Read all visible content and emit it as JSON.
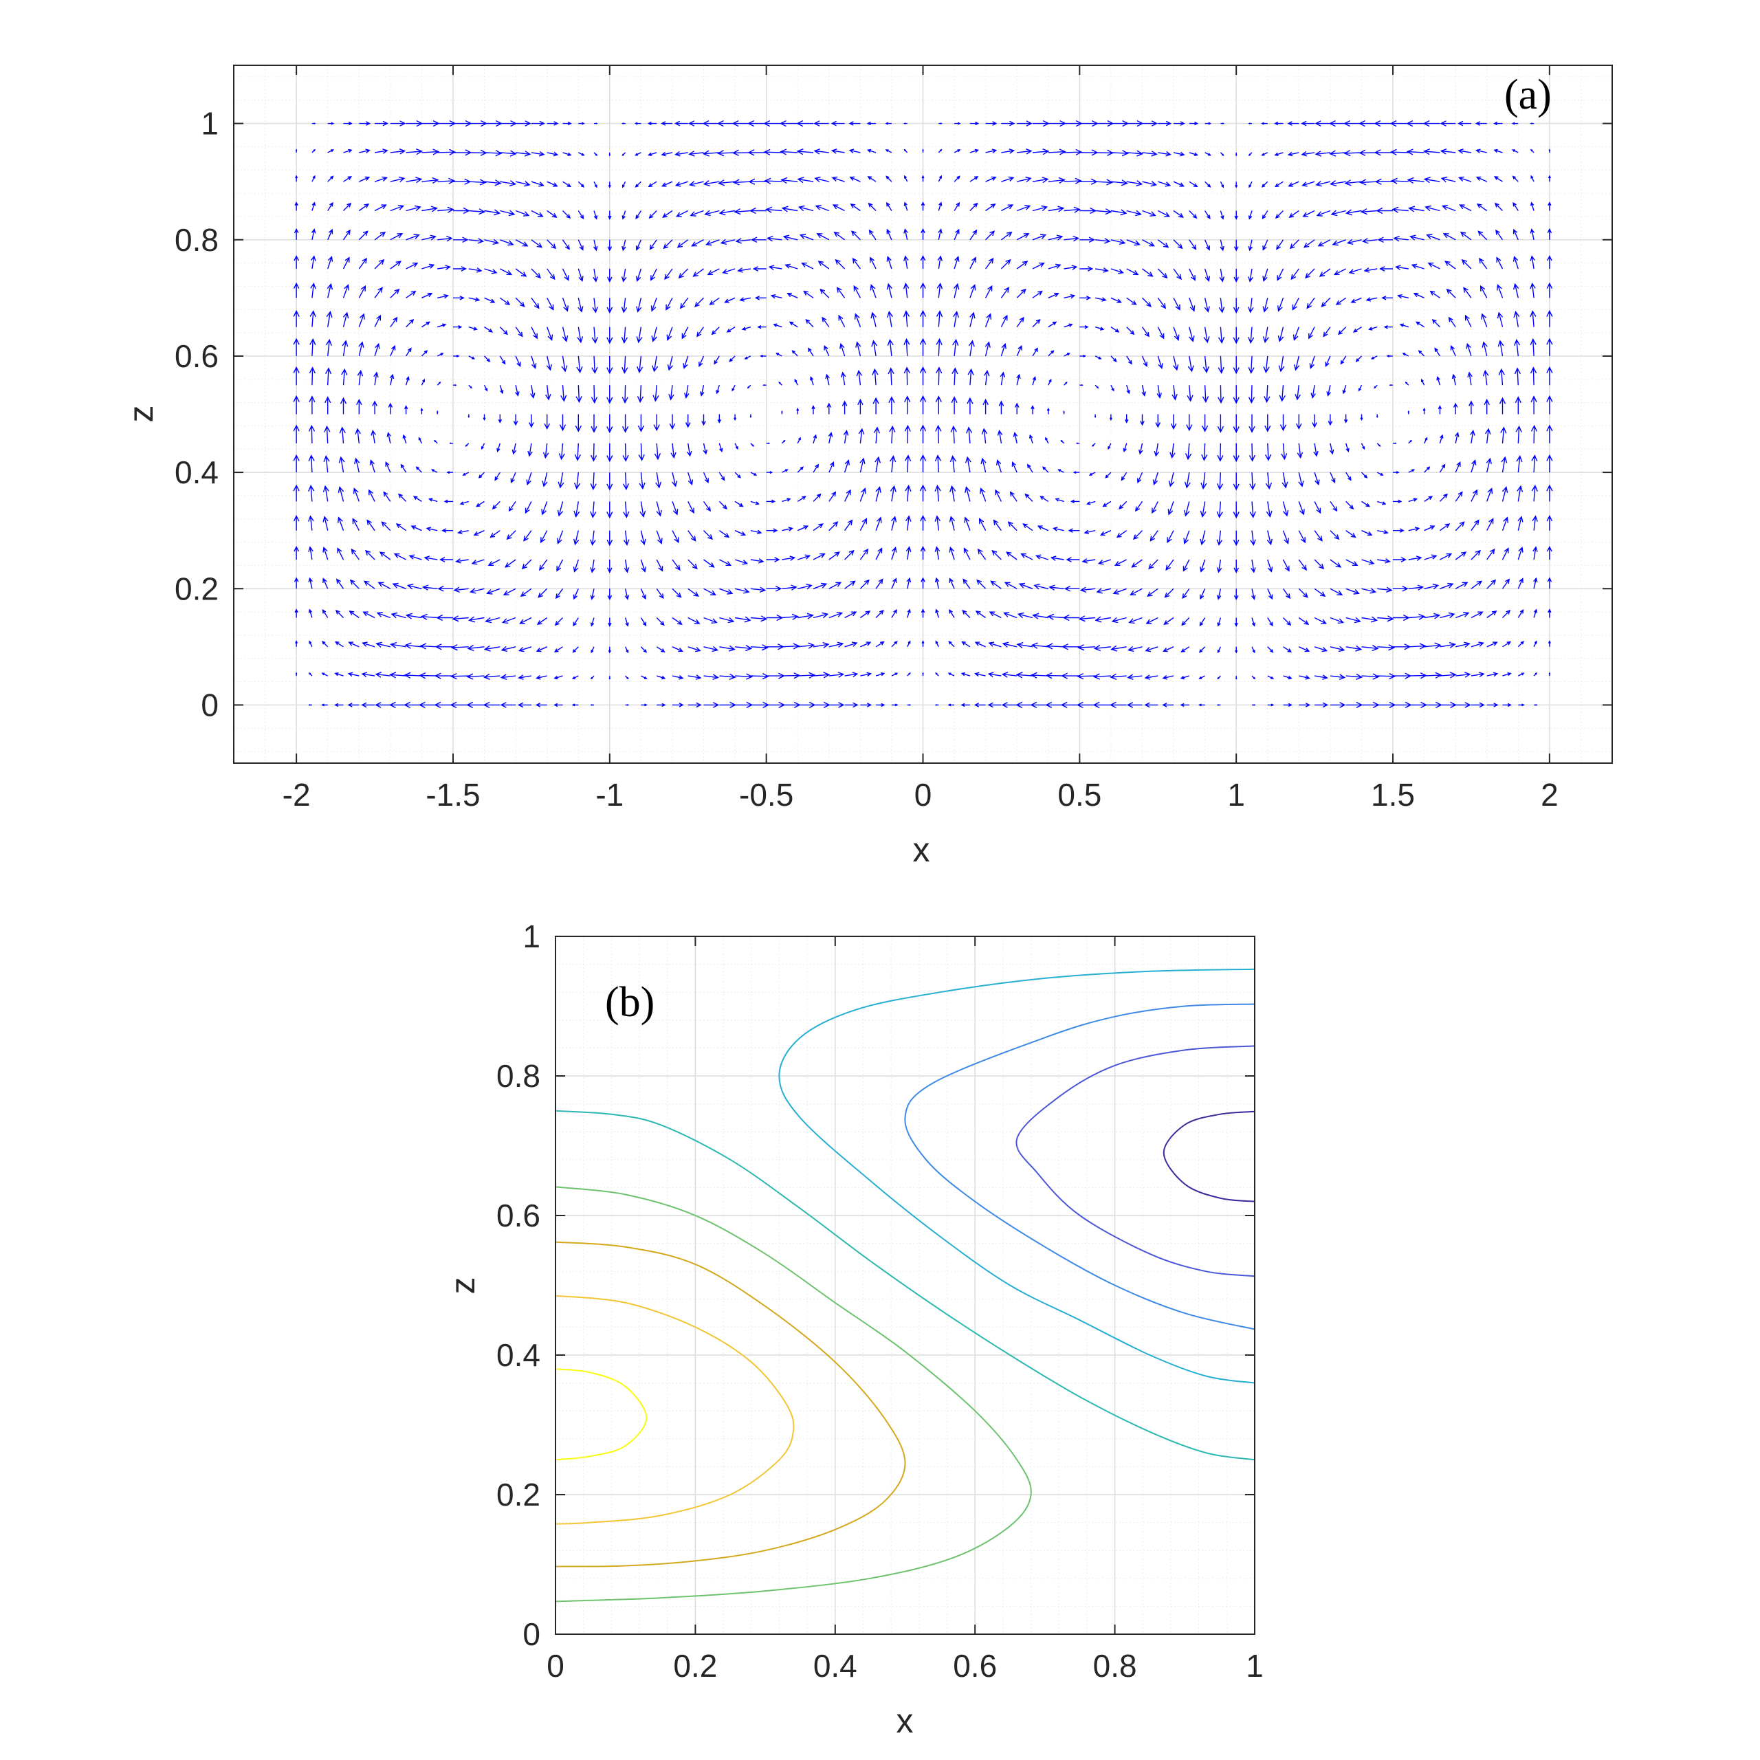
{
  "chart_data": [
    {
      "type": "quiver",
      "panel_label": "(a)",
      "xlabel": "x",
      "ylabel": "z",
      "xlim": [
        -2.2,
        2.2
      ],
      "ylim": [
        -0.1,
        1.1
      ],
      "xticks": [
        "-2",
        "-1.5",
        "-1",
        "-0.5",
        "0",
        "0.5",
        "1",
        "1.5",
        "2"
      ],
      "xtick_values": [
        -2,
        -1.5,
        -1,
        -0.5,
        0,
        0.5,
        1,
        1.5,
        2
      ],
      "yticks": [
        "0",
        "0.2",
        "0.4",
        "0.6",
        "0.8",
        "1"
      ],
      "ytick_values": [
        0,
        0.2,
        0.4,
        0.6,
        0.8,
        1
      ],
      "grid": true,
      "minor_grid": true,
      "arrow_color": "#0000ff",
      "field": {
        "x_range": [
          -2,
          2
        ],
        "z_range": [
          0,
          1
        ],
        "nx": 81,
        "nz": 21,
        "u": "-sin(pi*x)*cos(pi*z)",
        "w": "cos(pi*x)*sin(pi*z)"
      }
    },
    {
      "type": "contour",
      "panel_label": "(b)",
      "xlabel": "x",
      "ylabel": "z",
      "xlim": [
        0,
        1
      ],
      "ylim": [
        0,
        1
      ],
      "xticks": [
        "0",
        "0.2",
        "0.4",
        "0.6",
        "0.8",
        "1"
      ],
      "xtick_values": [
        0,
        0.2,
        0.4,
        0.6,
        0.8,
        1
      ],
      "yticks": [
        "0",
        "0.2",
        "0.4",
        "0.6",
        "0.8",
        "1"
      ],
      "ytick_values": [
        0,
        0.2,
        0.4,
        0.6,
        0.8,
        1
      ],
      "grid": true,
      "minor_grid": true,
      "levels": [
        {
          "color": "#f9fb0e",
          "points": [
            [
              0,
              0.38
            ],
            [
              0.05,
              0.375
            ],
            [
              0.1,
              0.355
            ],
            [
              0.13,
              0.31
            ],
            [
              0.1,
              0.27
            ],
            [
              0.05,
              0.255
            ],
            [
              0,
              0.25
            ]
          ]
        },
        {
          "color": "#f1c534",
          "points": [
            [
              0,
              0.485
            ],
            [
              0.1,
              0.475
            ],
            [
              0.2,
              0.44
            ],
            [
              0.28,
              0.39
            ],
            [
              0.33,
              0.33
            ],
            [
              0.34,
              0.29
            ],
            [
              0.32,
              0.25
            ],
            [
              0.25,
              0.2
            ],
            [
              0.15,
              0.17
            ],
            [
              0.05,
              0.16
            ],
            [
              0,
              0.158
            ]
          ]
        },
        {
          "color": "#d4a81c",
          "points": [
            [
              0,
              0.562
            ],
            [
              0.1,
              0.555
            ],
            [
              0.2,
              0.53
            ],
            [
              0.3,
              0.47
            ],
            [
              0.4,
              0.39
            ],
            [
              0.47,
              0.31
            ],
            [
              0.5,
              0.245
            ],
            [
              0.47,
              0.19
            ],
            [
              0.4,
              0.15
            ],
            [
              0.3,
              0.12
            ],
            [
              0.2,
              0.105
            ],
            [
              0.1,
              0.098
            ],
            [
              0,
              0.097
            ]
          ]
        },
        {
          "color": "#6dc26d",
          "points": [
            [
              0,
              0.641
            ],
            [
              0.1,
              0.63
            ],
            [
              0.2,
              0.6
            ],
            [
              0.3,
              0.545
            ],
            [
              0.4,
              0.475
            ],
            [
              0.5,
              0.405
            ],
            [
              0.6,
              0.32
            ],
            [
              0.66,
              0.25
            ],
            [
              0.68,
              0.2
            ],
            [
              0.65,
              0.155
            ],
            [
              0.57,
              0.11
            ],
            [
              0.45,
              0.08
            ],
            [
              0.3,
              0.062
            ],
            [
              0.15,
              0.052
            ],
            [
              0,
              0.047
            ]
          ]
        },
        {
          "color": "#2ab8b0",
          "points": [
            [
              0,
              0.75
            ],
            [
              0.08,
              0.745
            ],
            [
              0.15,
              0.73
            ],
            [
              0.25,
              0.68
            ],
            [
              0.35,
              0.61
            ],
            [
              0.45,
              0.535
            ],
            [
              0.55,
              0.465
            ],
            [
              0.65,
              0.4
            ],
            [
              0.75,
              0.34
            ],
            [
              0.85,
              0.29
            ],
            [
              0.93,
              0.26
            ],
            [
              1,
              0.25
            ]
          ]
        },
        {
          "color": "#25aed2",
          "points": [
            [
              1,
              0.953
            ],
            [
              0.85,
              0.95
            ],
            [
              0.7,
              0.94
            ],
            [
              0.55,
              0.92
            ],
            [
              0.43,
              0.895
            ],
            [
              0.35,
              0.855
            ],
            [
              0.32,
              0.8
            ],
            [
              0.35,
              0.74
            ],
            [
              0.45,
              0.65
            ],
            [
              0.55,
              0.57
            ],
            [
              0.65,
              0.5
            ],
            [
              0.75,
              0.45
            ],
            [
              0.85,
              0.4
            ],
            [
              0.93,
              0.37
            ],
            [
              1,
              0.36
            ]
          ]
        },
        {
          "color": "#3d8ae6",
          "points": [
            [
              1,
              0.903
            ],
            [
              0.9,
              0.9
            ],
            [
              0.8,
              0.885
            ],
            [
              0.7,
              0.855
            ],
            [
              0.54,
              0.79
            ],
            [
              0.5,
              0.74
            ],
            [
              0.53,
              0.68
            ],
            [
              0.6,
              0.62
            ],
            [
              0.7,
              0.555
            ],
            [
              0.8,
              0.5
            ],
            [
              0.9,
              0.46
            ],
            [
              1,
              0.437
            ]
          ]
        },
        {
          "color": "#4a56d8",
          "points": [
            [
              1,
              0.843
            ],
            [
              0.9,
              0.837
            ],
            [
              0.8,
              0.815
            ],
            [
              0.72,
              0.77
            ],
            [
              0.66,
              0.71
            ],
            [
              0.69,
              0.66
            ],
            [
              0.75,
              0.6
            ],
            [
              0.85,
              0.545
            ],
            [
              0.93,
              0.52
            ],
            [
              1,
              0.513
            ]
          ]
        },
        {
          "color": "#3b2c9e",
          "points": [
            [
              1,
              0.749
            ],
            [
              0.95,
              0.745
            ],
            [
              0.9,
              0.73
            ],
            [
              0.87,
              0.69
            ],
            [
              0.9,
              0.645
            ],
            [
              0.95,
              0.625
            ],
            [
              1,
              0.62
            ]
          ]
        }
      ]
    }
  ]
}
